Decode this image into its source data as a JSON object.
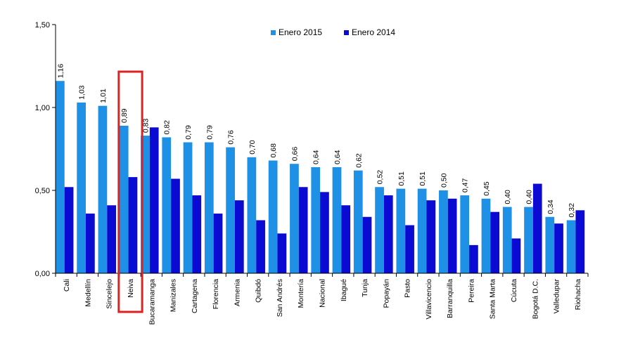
{
  "chart_data": {
    "type": "bar",
    "title": "",
    "xlabel": "",
    "ylabel": "",
    "ylim": [
      0,
      1.5
    ],
    "yticks": [
      "0,00",
      "0,50",
      "1,00",
      "1,50"
    ],
    "grid": false,
    "legend_position": "top-center",
    "categories": [
      "Cali",
      "Medellín",
      "Sincelejo",
      "Neiva",
      "Bucaramanga",
      "Manizales",
      "Cartagena",
      "Florencia",
      "Armenia",
      "Quibdó",
      "San Andrés",
      "Montería",
      "Nacional",
      "Ibagué",
      "Tunja",
      "Popayán",
      "Pasto",
      "Villavicencio",
      "Barranquilla",
      "Pereira",
      "Santa Marta",
      "Cúcuta",
      "Bogotá D.C.",
      "Valledupar",
      "Riohacha"
    ],
    "series": [
      {
        "name": "Enero 2015",
        "color": "#1e90e6",
        "values": [
          1.16,
          1.03,
          1.01,
          0.89,
          0.83,
          0.82,
          0.79,
          0.79,
          0.76,
          0.7,
          0.68,
          0.66,
          0.64,
          0.64,
          0.62,
          0.52,
          0.51,
          0.51,
          0.5,
          0.47,
          0.45,
          0.4,
          0.4,
          0.34,
          0.32
        ],
        "value_labels": [
          "1,16",
          "1,03",
          "1,01",
          "0,89",
          "0,83",
          "0,82",
          "0,79",
          "0,79",
          "0,76",
          "0,70",
          "0,68",
          "0,66",
          "0,64",
          "0,64",
          "0,62",
          "0,52",
          "0,51",
          "0,51",
          "0,50",
          "0,47",
          "0,45",
          "0,40",
          "0,40",
          "0,34",
          "0,32"
        ]
      },
      {
        "name": "Enero 2014",
        "color": "#0a0ad2",
        "values": [
          0.52,
          0.36,
          0.41,
          0.58,
          0.88,
          0.57,
          0.47,
          0.36,
          0.44,
          0.32,
          0.24,
          0.52,
          0.49,
          0.41,
          0.34,
          0.47,
          0.29,
          0.44,
          0.45,
          0.17,
          0.37,
          0.21,
          0.54,
          0.3,
          0.38
        ]
      }
    ],
    "highlight": {
      "category": "Neiva",
      "color": "#dd2222"
    }
  }
}
